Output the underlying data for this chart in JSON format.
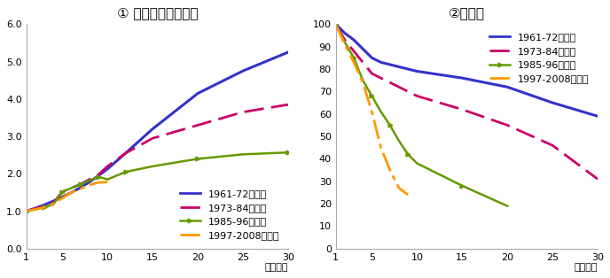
{
  "title1": "① 賃金プロファイル",
  "title2": "②残存率",
  "xlabel": "（年目）",
  "wage_x": [
    1,
    2,
    3,
    4,
    5,
    6,
    7,
    8,
    9,
    10,
    12,
    15,
    20,
    25,
    30
  ],
  "wage_1961": [
    1.0,
    1.08,
    1.17,
    1.27,
    1.38,
    1.5,
    1.63,
    1.78,
    1.95,
    2.13,
    2.55,
    3.2,
    4.15,
    4.75,
    5.25
  ],
  "wage_1973": [
    1.0,
    1.07,
    1.14,
    1.22,
    1.52,
    1.62,
    1.72,
    1.85,
    1.98,
    2.2,
    2.55,
    2.95,
    3.3,
    3.65,
    3.85
  ],
  "wage_1985": [
    1.0,
    1.05,
    1.1,
    1.18,
    1.52,
    1.62,
    1.72,
    1.82,
    1.92,
    1.85,
    2.05,
    2.2,
    2.4,
    2.52,
    2.57
  ],
  "wage_1997": [
    1.0,
    1.05,
    1.1,
    1.2,
    1.35,
    1.5,
    1.6,
    1.7,
    1.77,
    1.78,
    null,
    null,
    null,
    null,
    null
  ],
  "surv_x": [
    1,
    2,
    3,
    4,
    5,
    6,
    7,
    8,
    9,
    10,
    15,
    20,
    25,
    30
  ],
  "surv_1961": [
    100,
    96,
    93,
    89,
    85,
    83,
    82,
    81,
    80,
    79,
    76,
    72,
    65,
    59
  ],
  "surv_1973": [
    100,
    93,
    88,
    83,
    78,
    76,
    74,
    72,
    70,
    68,
    62,
    55,
    46,
    31
  ],
  "surv_1985": [
    100,
    92,
    85,
    75,
    68,
    61,
    55,
    48,
    42,
    38,
    28,
    19,
    null,
    null
  ],
  "surv_1997": [
    100,
    91,
    83,
    74,
    61,
    45,
    35,
    27,
    24,
    null,
    null,
    null,
    null,
    null
  ],
  "color_1961": "#3333cc",
  "color_1973": "#cc0066",
  "color_1985": "#669900",
  "color_1997": "#ff9900",
  "ylim_wage": [
    0.0,
    6.0
  ],
  "yticks_wage": [
    0.0,
    1.0,
    2.0,
    3.0,
    4.0,
    5.0,
    6.0
  ],
  "ylim_surv": [
    0,
    100
  ],
  "yticks_surv": [
    0,
    10,
    20,
    30,
    40,
    50,
    60,
    70,
    80,
    90,
    100
  ],
  "xticks": [
    1,
    5,
    10,
    15,
    20,
    25,
    30
  ],
  "legend_labels": [
    "1961-72年入職",
    "1973-84年入職",
    "1985-96年入職",
    "1997-2008年入職"
  ]
}
